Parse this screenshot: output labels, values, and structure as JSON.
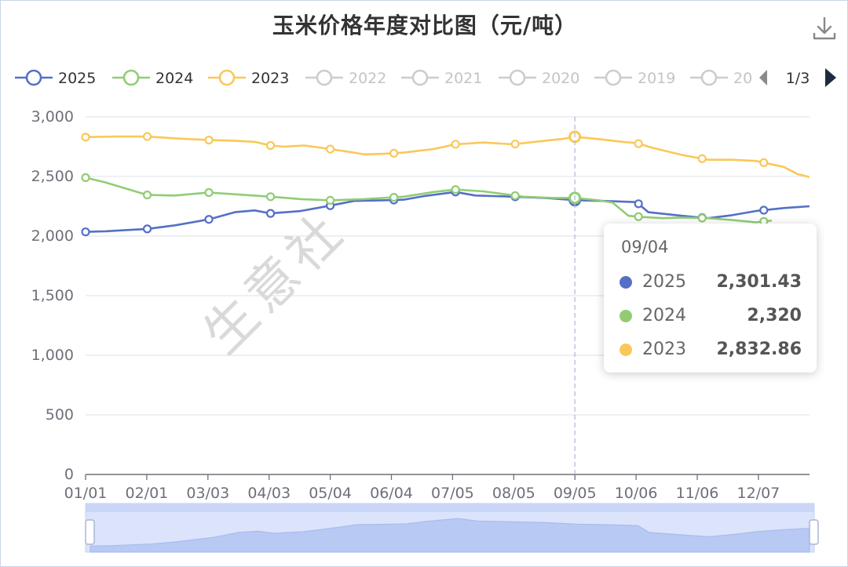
{
  "title": "玉米价格年度对比图（元/吨）",
  "watermark": "生意社",
  "legend": {
    "items": [
      {
        "label": "2025",
        "active": true,
        "color": "#5470c6"
      },
      {
        "label": "2024",
        "active": true,
        "color": "#91cc75"
      },
      {
        "label": "2023",
        "active": true,
        "color": "#fac858"
      },
      {
        "label": "2022",
        "active": false,
        "color": "#cccccc"
      },
      {
        "label": "2021",
        "active": false,
        "color": "#cccccc"
      },
      {
        "label": "2020",
        "active": false,
        "color": "#cccccc"
      },
      {
        "label": "2019",
        "active": false,
        "color": "#cccccc"
      },
      {
        "label": "20",
        "active": false,
        "color": "#cccccc"
      }
    ],
    "page": "1/3"
  },
  "tooltip": {
    "date": "09/04",
    "rows": [
      {
        "name": "2025",
        "value": "2,301.43",
        "color": "#5470c6"
      },
      {
        "name": "2024",
        "value": "2,320",
        "color": "#91cc75"
      },
      {
        "name": "2023",
        "value": "2,832.86",
        "color": "#fac858"
      }
    ]
  },
  "chart_data": {
    "type": "line",
    "title": "玉米价格年度对比图（元/吨）",
    "ylim": [
      0,
      3000
    ],
    "y_ticks": [
      "0",
      "500",
      "1,000",
      "1,500",
      "2,000",
      "2,500",
      "3,000"
    ],
    "y_tick_values": [
      0,
      500,
      1000,
      1500,
      2000,
      2500,
      3000
    ],
    "x_tick_labels": [
      "01/01",
      "02/01",
      "03/03",
      "04/03",
      "05/04",
      "06/04",
      "07/05",
      "08/05",
      "09/05",
      "10/06",
      "11/06",
      "12/07"
    ],
    "x_domain": [
      0,
      364
    ],
    "crosshair_day": 246,
    "grid": true,
    "legend_position": "top",
    "series": [
      {
        "name": "2025",
        "color": "#5470c6",
        "points": [
          [
            0,
            2035
          ],
          [
            10,
            2040
          ],
          [
            20,
            2050
          ],
          [
            31,
            2060
          ],
          [
            45,
            2090
          ],
          [
            62,
            2140
          ],
          [
            75,
            2200
          ],
          [
            85,
            2215
          ],
          [
            93,
            2190
          ],
          [
            108,
            2210
          ],
          [
            123,
            2255
          ],
          [
            135,
            2295
          ],
          [
            150,
            2300
          ],
          [
            160,
            2305
          ],
          [
            170,
            2335
          ],
          [
            186,
            2370
          ],
          [
            196,
            2340
          ],
          [
            215,
            2330
          ],
          [
            231,
            2320
          ],
          [
            246,
            2301.43
          ],
          [
            260,
            2295
          ],
          [
            277,
            2285
          ],
          [
            283,
            2200
          ],
          [
            300,
            2170
          ],
          [
            313,
            2150
          ],
          [
            325,
            2175
          ],
          [
            337,
            2210
          ],
          [
            351,
            2235
          ],
          [
            364,
            2250
          ]
        ]
      },
      {
        "name": "2024",
        "color": "#91cc75",
        "points": [
          [
            0,
            2490
          ],
          [
            10,
            2450
          ],
          [
            20,
            2400
          ],
          [
            31,
            2345
          ],
          [
            45,
            2340
          ],
          [
            62,
            2365
          ],
          [
            80,
            2345
          ],
          [
            93,
            2330
          ],
          [
            108,
            2310
          ],
          [
            123,
            2300
          ],
          [
            140,
            2310
          ],
          [
            160,
            2330
          ],
          [
            175,
            2370
          ],
          [
            186,
            2390
          ],
          [
            200,
            2375
          ],
          [
            220,
            2330
          ],
          [
            235,
            2320
          ],
          [
            246,
            2320
          ],
          [
            258,
            2300
          ],
          [
            265,
            2280
          ],
          [
            273,
            2170
          ],
          [
            280,
            2160
          ],
          [
            290,
            2150
          ],
          [
            300,
            2155
          ],
          [
            313,
            2150
          ],
          [
            325,
            2135
          ],
          [
            337,
            2115
          ],
          [
            345,
            2130
          ]
        ]
      },
      {
        "name": "2023",
        "color": "#fac858",
        "points": [
          [
            0,
            2830
          ],
          [
            15,
            2835
          ],
          [
            31,
            2835
          ],
          [
            45,
            2820
          ],
          [
            62,
            2805
          ],
          [
            75,
            2800
          ],
          [
            85,
            2790
          ],
          [
            93,
            2760
          ],
          [
            100,
            2750
          ],
          [
            110,
            2760
          ],
          [
            123,
            2730
          ],
          [
            135,
            2700
          ],
          [
            140,
            2685
          ],
          [
            150,
            2690
          ],
          [
            160,
            2700
          ],
          [
            175,
            2730
          ],
          [
            186,
            2770
          ],
          [
            200,
            2785
          ],
          [
            215,
            2770
          ],
          [
            231,
            2800
          ],
          [
            240,
            2815
          ],
          [
            246,
            2832.86
          ],
          [
            260,
            2810
          ],
          [
            270,
            2790
          ],
          [
            277,
            2780
          ],
          [
            285,
            2740
          ],
          [
            300,
            2680
          ],
          [
            313,
            2640
          ],
          [
            325,
            2640
          ],
          [
            337,
            2630
          ],
          [
            351,
            2580
          ],
          [
            358,
            2520
          ],
          [
            364,
            2495
          ]
        ]
      }
    ]
  }
}
